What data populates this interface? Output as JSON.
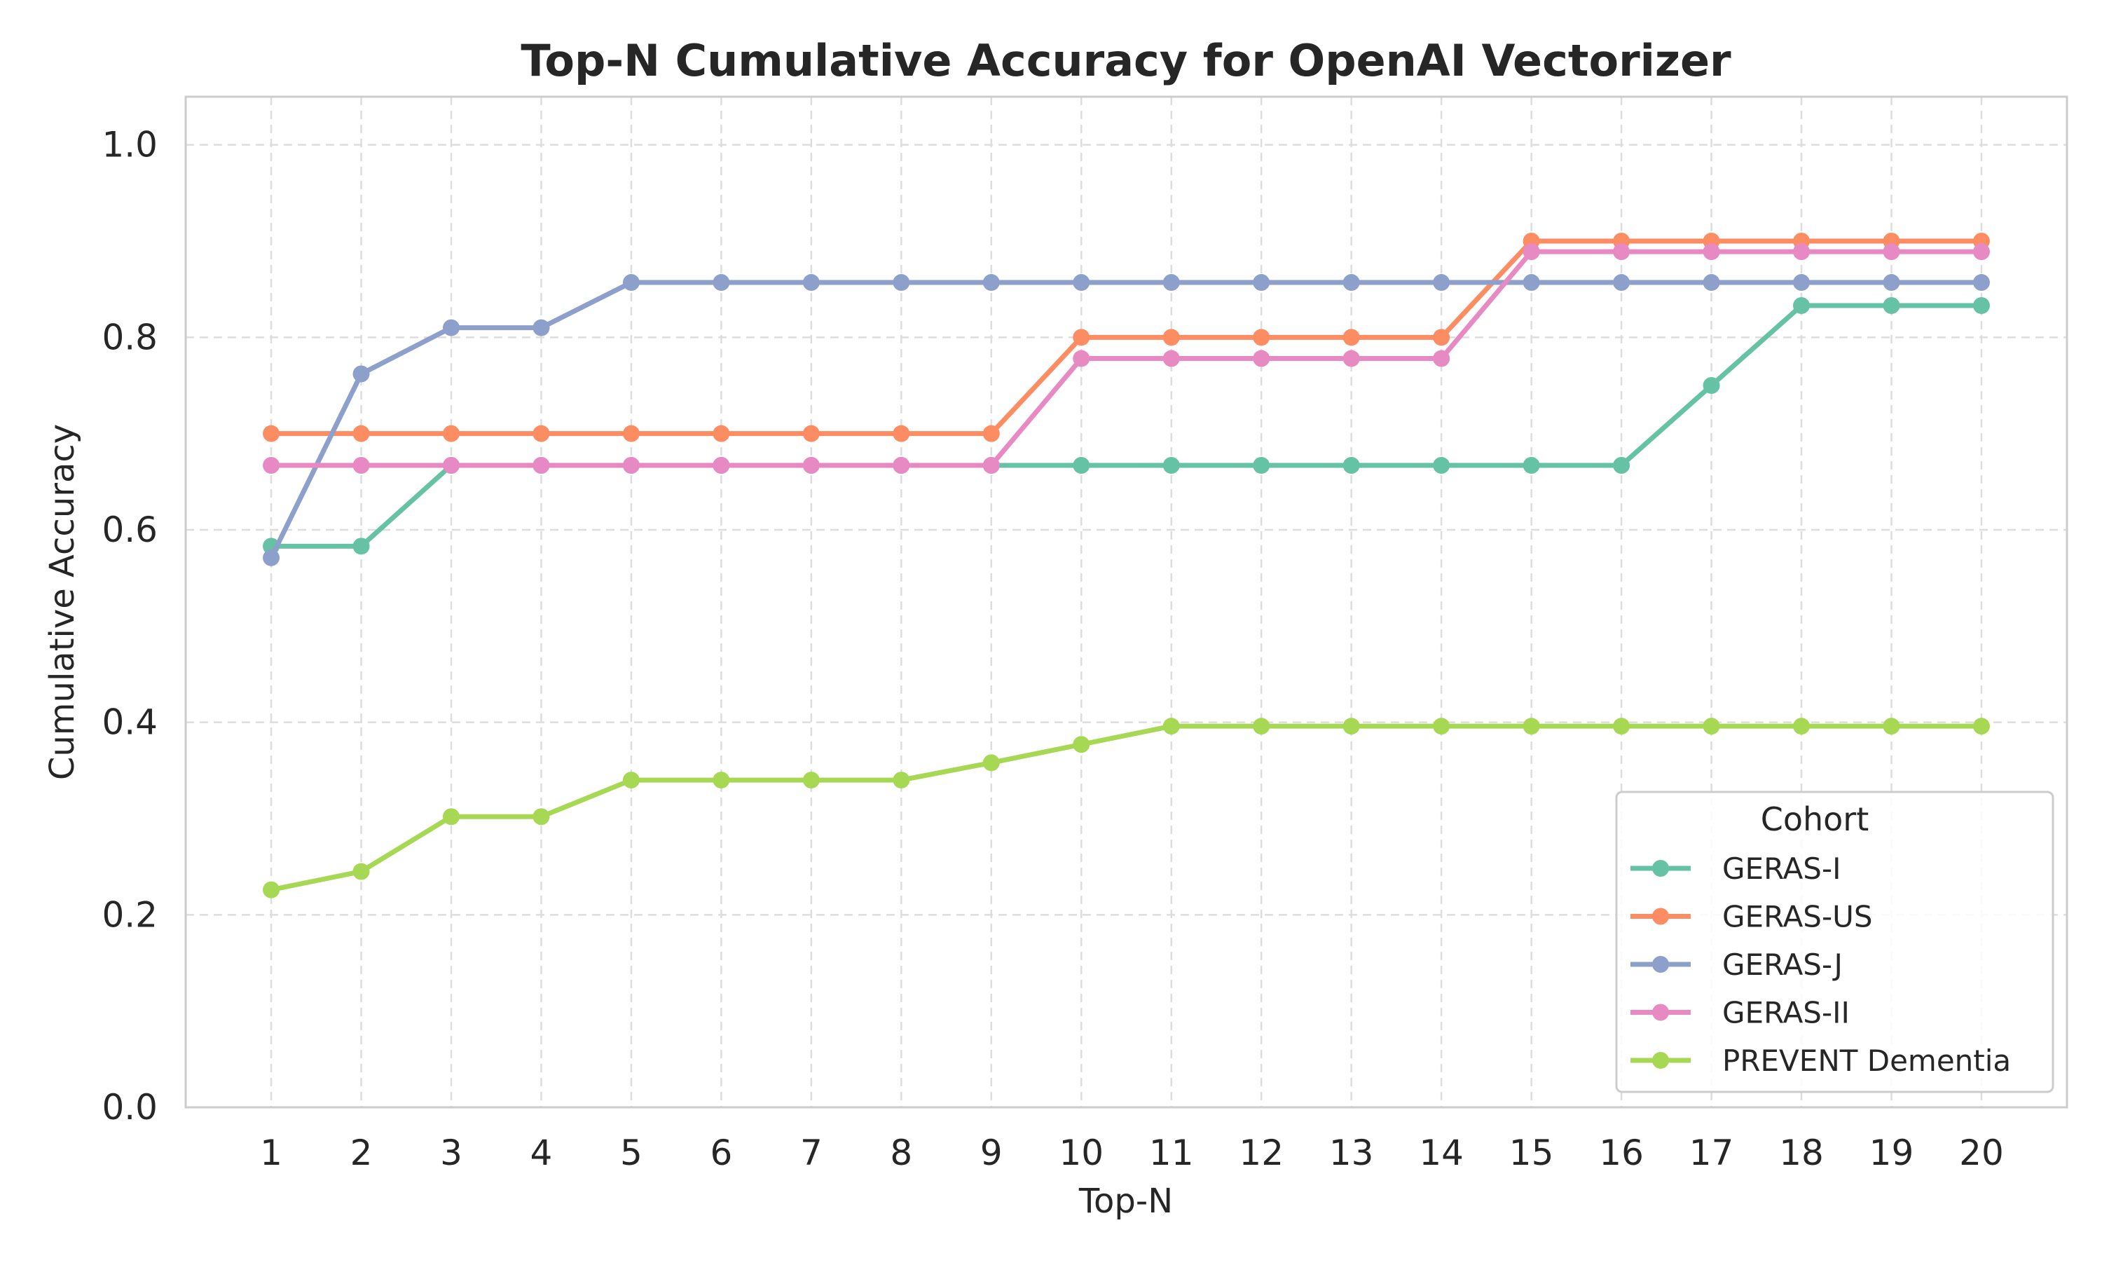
{
  "chart_data": {
    "type": "line",
    "title": "Top-N Cumulative Accuracy for OpenAI Vectorizer",
    "xlabel": "Top-N",
    "ylabel": "Cumulative Accuracy",
    "x": [
      1,
      2,
      3,
      4,
      5,
      6,
      7,
      8,
      9,
      10,
      11,
      12,
      13,
      14,
      15,
      16,
      17,
      18,
      19,
      20
    ],
    "xlim": [
      0.05,
      20.95
    ],
    "ylim": [
      0.0,
      1.05
    ],
    "yticks": [
      0.0,
      0.2,
      0.4,
      0.6,
      0.8,
      1.0
    ],
    "ytick_labels": [
      "0.0",
      "0.2",
      "0.4",
      "0.6",
      "0.8",
      "1.0"
    ],
    "grid": true,
    "grid_style": "dashed",
    "legend": {
      "title": "Cohort",
      "placement": "lower-right"
    },
    "series": [
      {
        "name": "GERAS-I",
        "color": "#66c2a5",
        "values": [
          0.583,
          0.583,
          0.667,
          0.667,
          0.667,
          0.667,
          0.667,
          0.667,
          0.667,
          0.667,
          0.667,
          0.667,
          0.667,
          0.667,
          0.667,
          0.667,
          0.75,
          0.833,
          0.833,
          0.833
        ]
      },
      {
        "name": "GERAS-US",
        "color": "#fc8d62",
        "values": [
          0.7,
          0.7,
          0.7,
          0.7,
          0.7,
          0.7,
          0.7,
          0.7,
          0.7,
          0.8,
          0.8,
          0.8,
          0.8,
          0.8,
          0.9,
          0.9,
          0.9,
          0.9,
          0.9,
          0.9
        ]
      },
      {
        "name": "GERAS-J",
        "color": "#8da0cb",
        "values": [
          0.571,
          0.762,
          0.81,
          0.81,
          0.857,
          0.857,
          0.857,
          0.857,
          0.857,
          0.857,
          0.857,
          0.857,
          0.857,
          0.857,
          0.857,
          0.857,
          0.857,
          0.857,
          0.857,
          0.857
        ]
      },
      {
        "name": "GERAS-II",
        "color": "#e78ac3",
        "values": [
          0.667,
          0.667,
          0.667,
          0.667,
          0.667,
          0.667,
          0.667,
          0.667,
          0.667,
          0.778,
          0.778,
          0.778,
          0.778,
          0.778,
          0.889,
          0.889,
          0.889,
          0.889,
          0.889,
          0.889
        ]
      },
      {
        "name": "PREVENT Dementia",
        "color": "#a6d854",
        "values": [
          0.226,
          0.245,
          0.302,
          0.302,
          0.34,
          0.34,
          0.34,
          0.34,
          0.358,
          0.377,
          0.396,
          0.396,
          0.396,
          0.396,
          0.396,
          0.396,
          0.396,
          0.396,
          0.396,
          0.396
        ]
      }
    ]
  }
}
